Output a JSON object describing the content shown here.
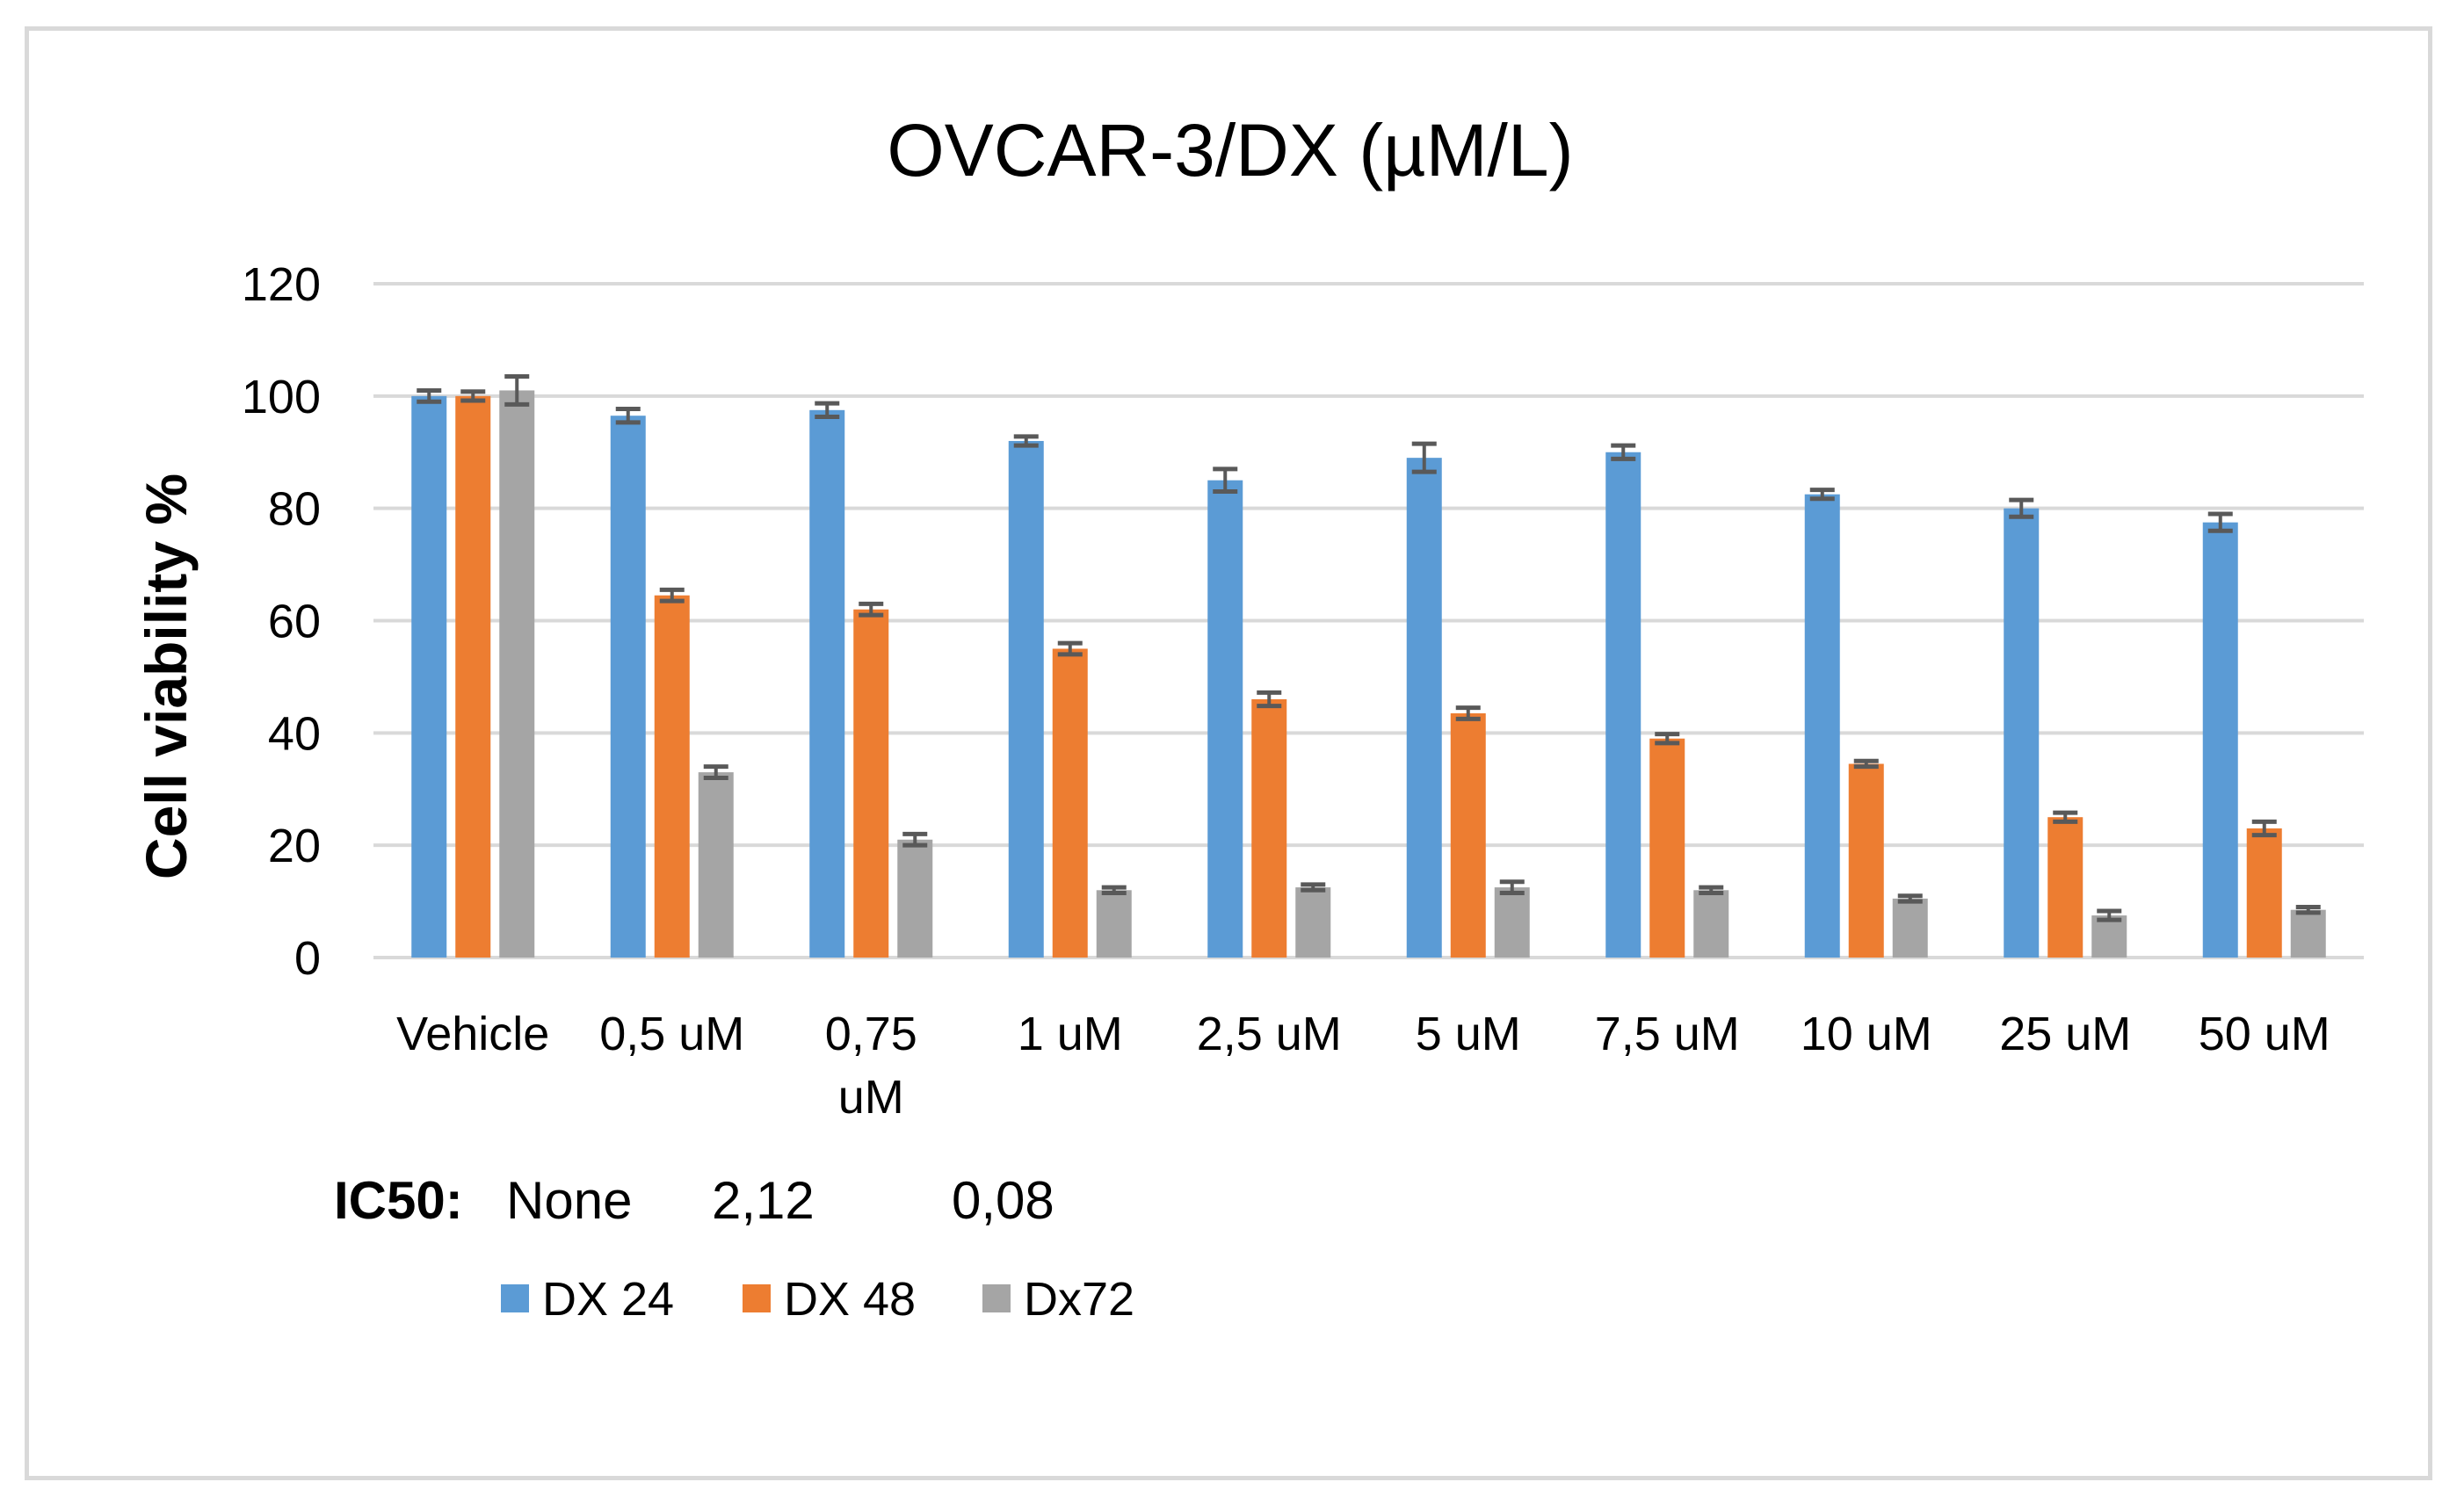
{
  "chart_data": {
    "type": "bar",
    "title": "OVCAR-3/DX (µM/L)",
    "xlabel": "",
    "ylabel": "Cell viability %",
    "ylim": [
      0,
      120
    ],
    "yticks": [
      0,
      20,
      40,
      60,
      80,
      100,
      120
    ],
    "grid": true,
    "categories": [
      "Vehicle",
      "0,5 uM",
      "0,75\nuM",
      "1 uM",
      "2,5 uM",
      "5 uM",
      "7,5 uM",
      "10 uM",
      "25 uM",
      "50 uM"
    ],
    "series": [
      {
        "name": "DX 24",
        "color": "#5b9bd5",
        "values": [
          100,
          96.5,
          97.5,
          92,
          85,
          89,
          90,
          82.5,
          80,
          77.5
        ],
        "errors": [
          1,
          1.2,
          1.2,
          0.8,
          2,
          2.5,
          1.2,
          0.8,
          1.5,
          1.5
        ]
      },
      {
        "name": "DX 48",
        "color": "#ed7d31",
        "values": [
          100,
          64.5,
          62,
          55,
          46,
          43.5,
          39,
          34.5,
          25,
          23
        ],
        "errors": [
          0.8,
          1,
          1,
          1,
          1.2,
          1,
          0.8,
          0.5,
          0.8,
          1.2
        ]
      },
      {
        "name": "Dx72",
        "color": "#a5a5a5",
        "values": [
          101,
          33,
          21,
          12,
          12.5,
          12.5,
          12,
          10.5,
          7.5,
          8.5
        ],
        "errors": [
          2.5,
          1,
          1,
          0.5,
          0.5,
          1,
          0.5,
          0.5,
          0.8,
          0.5
        ]
      }
    ],
    "legend_position": "bottom-left",
    "error_color": "#595959",
    "grid_color": "#d9d9d9"
  },
  "ic50": {
    "label": "IC50:",
    "values": [
      "None",
      "2,12",
      "0,08"
    ]
  }
}
